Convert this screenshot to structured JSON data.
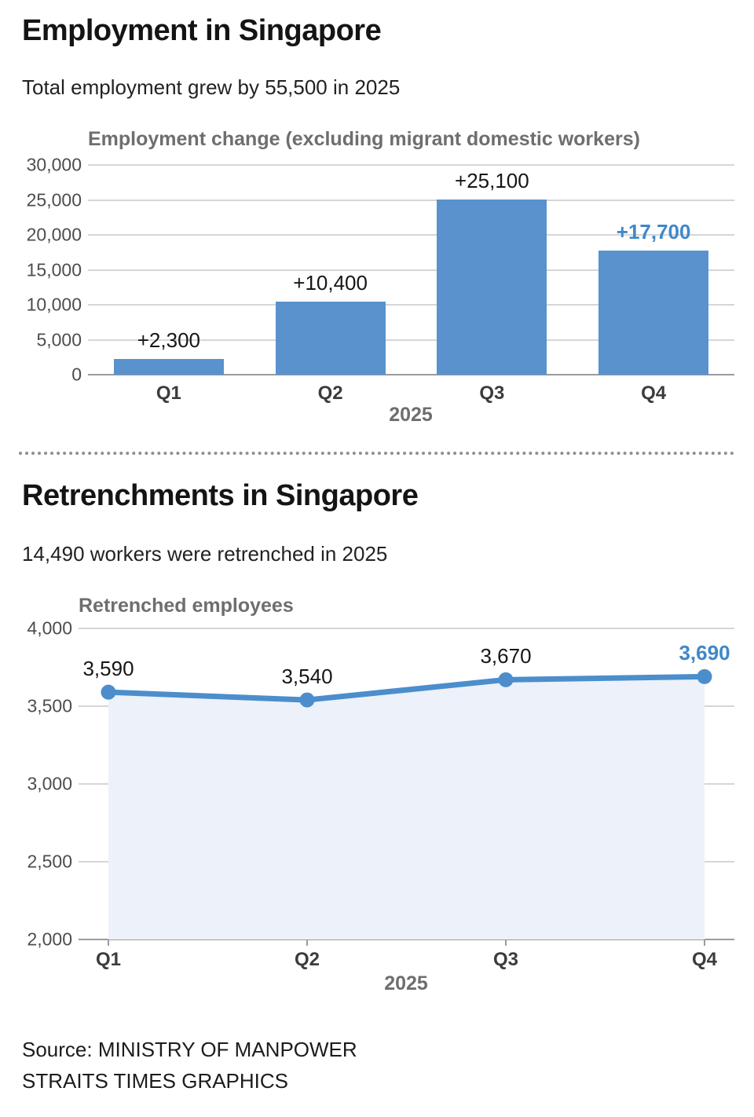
{
  "sections": [
    {
      "title": "Employment in Singapore",
      "subtitle": "Total employment grew by 55,500 in 2025"
    },
    {
      "title": "Retrenchments in Singapore",
      "subtitle": "14,490 workers were retrenched in 2025"
    }
  ],
  "footer": {
    "source_line1": "Source: MINISTRY OF MANPOWER",
    "source_line2": "STRAITS TIMES GRAPHICS"
  },
  "colors": {
    "bar": "#5992cd",
    "line": "#4b8ecb",
    "accent_label": "#3f88c9",
    "area_fill": "#edf1fa",
    "grid": "#d6d6d6",
    "baseline": "#9b9b9b"
  },
  "chart_data": [
    {
      "type": "bar",
      "title": "Employment change (excluding migrant domestic workers)",
      "categories": [
        "Q1",
        "Q2",
        "Q3",
        "Q4"
      ],
      "values": [
        2300,
        10400,
        25100,
        17700
      ],
      "value_labels": [
        "+2,300",
        "+10,400",
        "+25,100",
        "+17,700"
      ],
      "highlight_index": 3,
      "xlabel": "2025",
      "ylim": [
        0,
        30000
      ],
      "yticks": [
        0,
        5000,
        10000,
        15000,
        20000,
        25000,
        30000
      ],
      "ytick_labels": [
        "0",
        "5,000",
        "10,000",
        "15,000",
        "20,000",
        "25,000",
        "30,000"
      ],
      "grid": true,
      "legend": "none"
    },
    {
      "type": "area",
      "title": "Retrenched employees",
      "categories": [
        "Q1",
        "Q2",
        "Q3",
        "Q4"
      ],
      "values": [
        3590,
        3540,
        3670,
        3690
      ],
      "value_labels": [
        "3,590",
        "3,540",
        "3,670",
        "3,690"
      ],
      "highlight_index": 3,
      "xlabel": "2025",
      "ylim": [
        2000,
        4000
      ],
      "yticks": [
        2000,
        2500,
        3000,
        3500,
        4000
      ],
      "ytick_labels": [
        "2,000",
        "2,500",
        "3,000",
        "3,500",
        "4,000"
      ],
      "grid": true,
      "legend": "none"
    }
  ]
}
